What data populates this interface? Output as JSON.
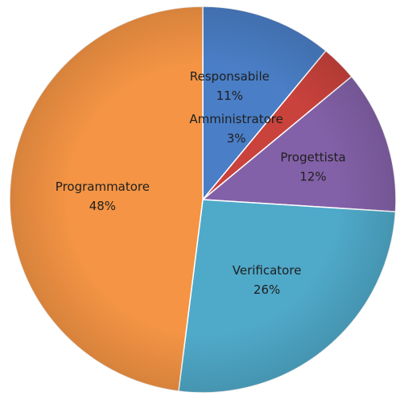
{
  "chart_data": {
    "type": "pie",
    "title": "",
    "slices": [
      {
        "label": "Responsabile",
        "value": 11,
        "value_label": "11%",
        "color": "#4a7ec6"
      },
      {
        "label": "Amministratore",
        "value": 3,
        "value_label": "3%",
        "color": "#c9423c"
      },
      {
        "label": "Progettista",
        "value": 12,
        "value_label": "12%",
        "color": "#8361a8"
      },
      {
        "label": "Verificatore",
        "value": 26,
        "value_label": "26%",
        "color": "#4fa9c9"
      },
      {
        "label": "Programmatore",
        "value": 48,
        "value_label": "48%",
        "color": "#f49444"
      }
    ],
    "start": "12 o'clock",
    "direction": "clockwise",
    "legend": "none",
    "data_labels": "inside slices"
  }
}
